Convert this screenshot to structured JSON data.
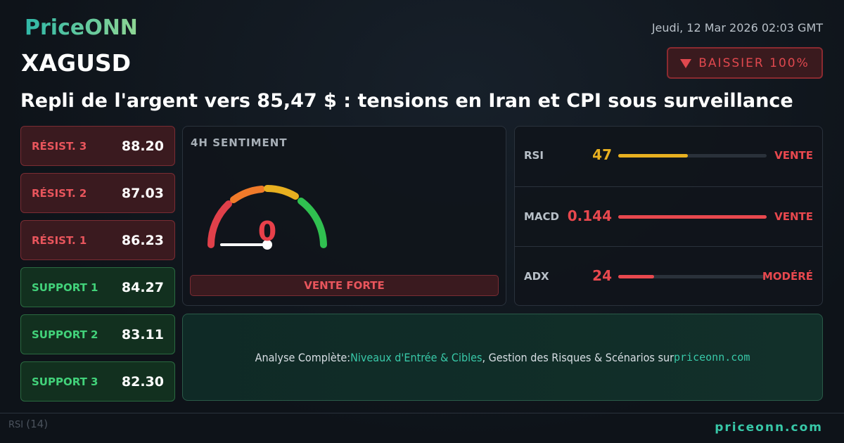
{
  "logo": "PriceONN",
  "date": "Jeudi, 12 Mar 2026 02:03 GMT",
  "symbol": "XAGUSD",
  "badge": "BAISSIER 100%",
  "headline": "Repli de l'argent vers 85,47 $ : tensions en Iran et CPI sous surveillance",
  "levels": [
    {
      "label": "RÉSIST. 3",
      "value": "88.20"
    },
    {
      "label": "RÉSIST. 2",
      "value": "87.03"
    },
    {
      "label": "RÉSIST. 1",
      "value": "86.23"
    },
    {
      "label": "SUPPORT 1",
      "value": "84.27"
    },
    {
      "label": "SUPPORT 2",
      "value": "83.11"
    },
    {
      "label": "SUPPORT 3",
      "value": "82.30"
    }
  ],
  "sentiment": {
    "title": "4H SENTIMENT",
    "value": 0,
    "verdict": "VENTE FORTE"
  },
  "indicators": [
    {
      "name": "RSI",
      "value": 47,
      "signal": "VENTE"
    },
    {
      "name": "MACD",
      "value": 0.144,
      "signal": "VENTE"
    },
    {
      "name": "ADX",
      "value": 24,
      "signal": "MODÉRÉ"
    }
  ],
  "cta": {
    "prefix": "Analyse Complète:",
    "link": "Niveaux d'Entrée & Cibles",
    "middle": ", Gestion des Risques & Scénarios sur",
    "site": "priceonn.com"
  },
  "background_label": {
    "name": "RSI",
    "period": "(14)"
  },
  "footer": "priceonn.com"
}
